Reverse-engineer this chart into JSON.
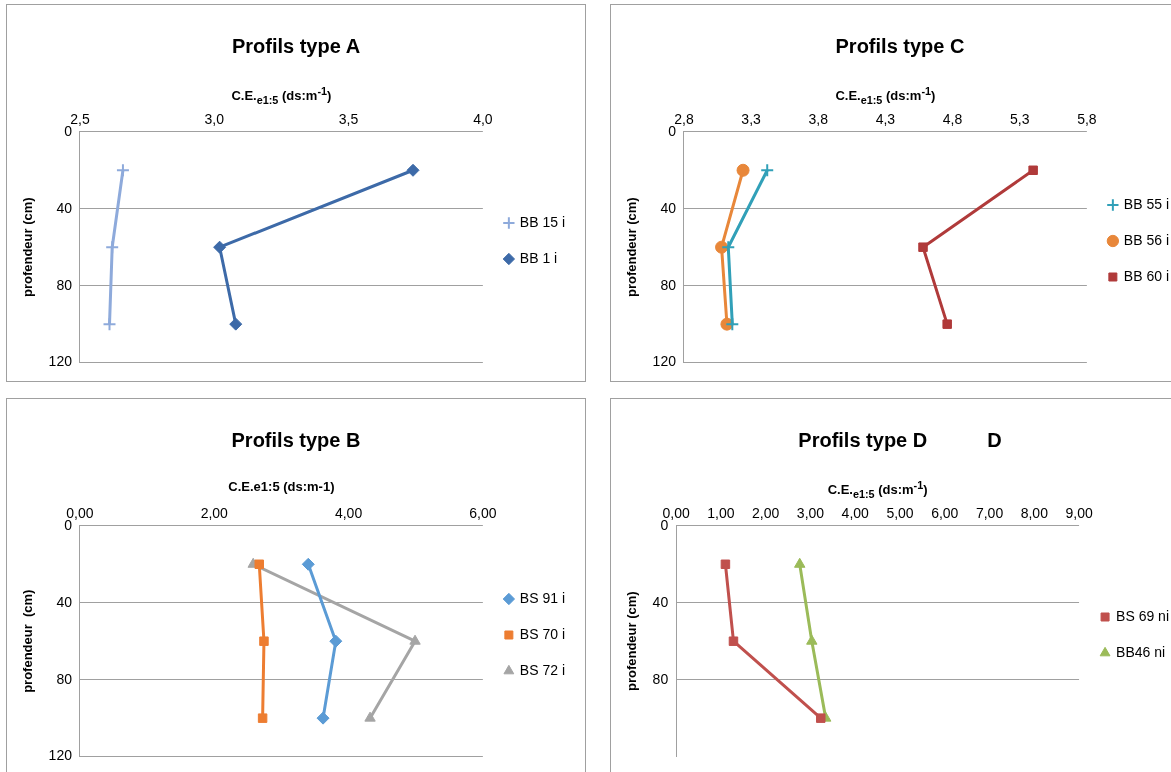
{
  "chart_data": [
    {
      "type": "line",
      "title": "Profils type A",
      "xlabel": "C.E.$_{e1:5}$ (ds:m$^{-1}$)",
      "ylabel": "profendeur (cm)",
      "xlim": [
        2.5,
        4.0
      ],
      "xticks": [
        {
          "value": 2.5,
          "label": "2,5"
        },
        {
          "value": 3.0,
          "label": "3,0"
        },
        {
          "value": 3.5,
          "label": "3,5"
        },
        {
          "value": 4.0,
          "label": "4,0"
        }
      ],
      "ylim": [
        120,
        0
      ],
      "yticks": [
        0,
        40,
        80,
        120
      ],
      "grid": "y",
      "legend": "right",
      "series": [
        {
          "name": "BB 15 i",
          "color": "#8eaadb",
          "marker": "cross",
          "x": [
            2.66,
            2.62,
            2.61
          ],
          "values": [
            20,
            60,
            100
          ]
        },
        {
          "name": "BB 1 i",
          "color": "#3d6aa8",
          "marker": "diamond",
          "x": [
            3.74,
            3.02,
            3.08
          ],
          "values": [
            20,
            60,
            100
          ]
        }
      ]
    },
    {
      "type": "line",
      "title": "Profils type C",
      "xlabel": "C.E.$_{e1:5}$ (ds:m$^{-1}$)",
      "ylabel": "profendeur (cm)",
      "xlim": [
        2.8,
        5.8
      ],
      "xticks": [
        {
          "value": 2.8,
          "label": "2,8"
        },
        {
          "value": 3.3,
          "label": "3,3"
        },
        {
          "value": 3.8,
          "label": "3,8"
        },
        {
          "value": 4.3,
          "label": "4,3"
        },
        {
          "value": 4.8,
          "label": "4,8"
        },
        {
          "value": 5.3,
          "label": "5,3"
        },
        {
          "value": 5.8,
          "label": "5,8"
        }
      ],
      "ylim": [
        120,
        0
      ],
      "yticks": [
        0,
        40,
        80,
        120
      ],
      "grid": "y",
      "legend": "right",
      "series": [
        {
          "name": "BB 55 i",
          "color": "#31a0b8",
          "marker": "cross",
          "x": [
            3.42,
            3.13,
            3.16
          ],
          "values": [
            20,
            60,
            100
          ]
        },
        {
          "name": "BB 56 i",
          "color": "#e8873a",
          "marker": "circle",
          "x": [
            3.24,
            3.08,
            3.12
          ],
          "values": [
            20,
            60,
            100
          ]
        },
        {
          "name": "BB 60 i",
          "color": "#b03a3a",
          "marker": "square",
          "x": [
            5.4,
            4.58,
            4.76
          ],
          "values": [
            20,
            60,
            100
          ]
        }
      ]
    },
    {
      "type": "line",
      "title": "Profils type B",
      "xlabel": "C.E.e1:5 (ds:m-1)",
      "ylabel": "profendeur  (cm)",
      "xlim": [
        0,
        6
      ],
      "xticks": [
        {
          "value": 0,
          "label": "0,00"
        },
        {
          "value": 2,
          "label": "2,00"
        },
        {
          "value": 4,
          "label": "4,00"
        },
        {
          "value": 6,
          "label": "6,00"
        }
      ],
      "ylim": [
        120,
        0
      ],
      "yticks": [
        0,
        40,
        80,
        120
      ],
      "grid": "y",
      "legend": "right",
      "series": [
        {
          "name": "BS 91 i",
          "color": "#5b9bd5",
          "marker": "diamond",
          "x": [
            3.4,
            3.81,
            3.62
          ],
          "values": [
            20,
            60,
            100
          ]
        },
        {
          "name": "BS 70 i",
          "color": "#ed7d31",
          "marker": "square",
          "x": [
            2.67,
            2.74,
            2.72
          ],
          "values": [
            20,
            60,
            100
          ]
        },
        {
          "name": "BS 72 i",
          "color": "#a5a5a5",
          "marker": "triangle",
          "x": [
            2.58,
            4.99,
            4.32
          ],
          "values": [
            20,
            60,
            100
          ]
        }
      ]
    },
    {
      "type": "line",
      "title": "Profils type D",
      "annotations": [
        "D"
      ],
      "xlabel": "C.E.$_{e1:5}$ (ds:m$^{-1}$)",
      "ylabel": "profendeur (cm)",
      "xlim": [
        0,
        9
      ],
      "xticks": [
        {
          "value": 0,
          "label": "0,00"
        },
        {
          "value": 1,
          "label": "1,00"
        },
        {
          "value": 2,
          "label": "2,00"
        },
        {
          "value": 3,
          "label": "3,00"
        },
        {
          "value": 4,
          "label": "4,00"
        },
        {
          "value": 5,
          "label": "5,00"
        },
        {
          "value": 6,
          "label": "6,00"
        },
        {
          "value": 7,
          "label": "7,00"
        },
        {
          "value": 8,
          "label": "8,00"
        },
        {
          "value": 9,
          "label": "9,00"
        }
      ],
      "ylim": [
        120,
        0
      ],
      "yticks": [
        0,
        40,
        80
      ],
      "grid": "y",
      "legend": "right",
      "series": [
        {
          "name": "BS 69 ni",
          "color": "#c0504d",
          "marker": "square",
          "x": [
            1.1,
            1.28,
            3.23
          ],
          "values": [
            20,
            60,
            100
          ]
        },
        {
          "name": "BB46 ni",
          "color": "#9bbb59",
          "marker": "triangle",
          "x": [
            2.76,
            3.03,
            3.34
          ],
          "values": [
            20,
            60,
            100
          ]
        }
      ]
    }
  ]
}
